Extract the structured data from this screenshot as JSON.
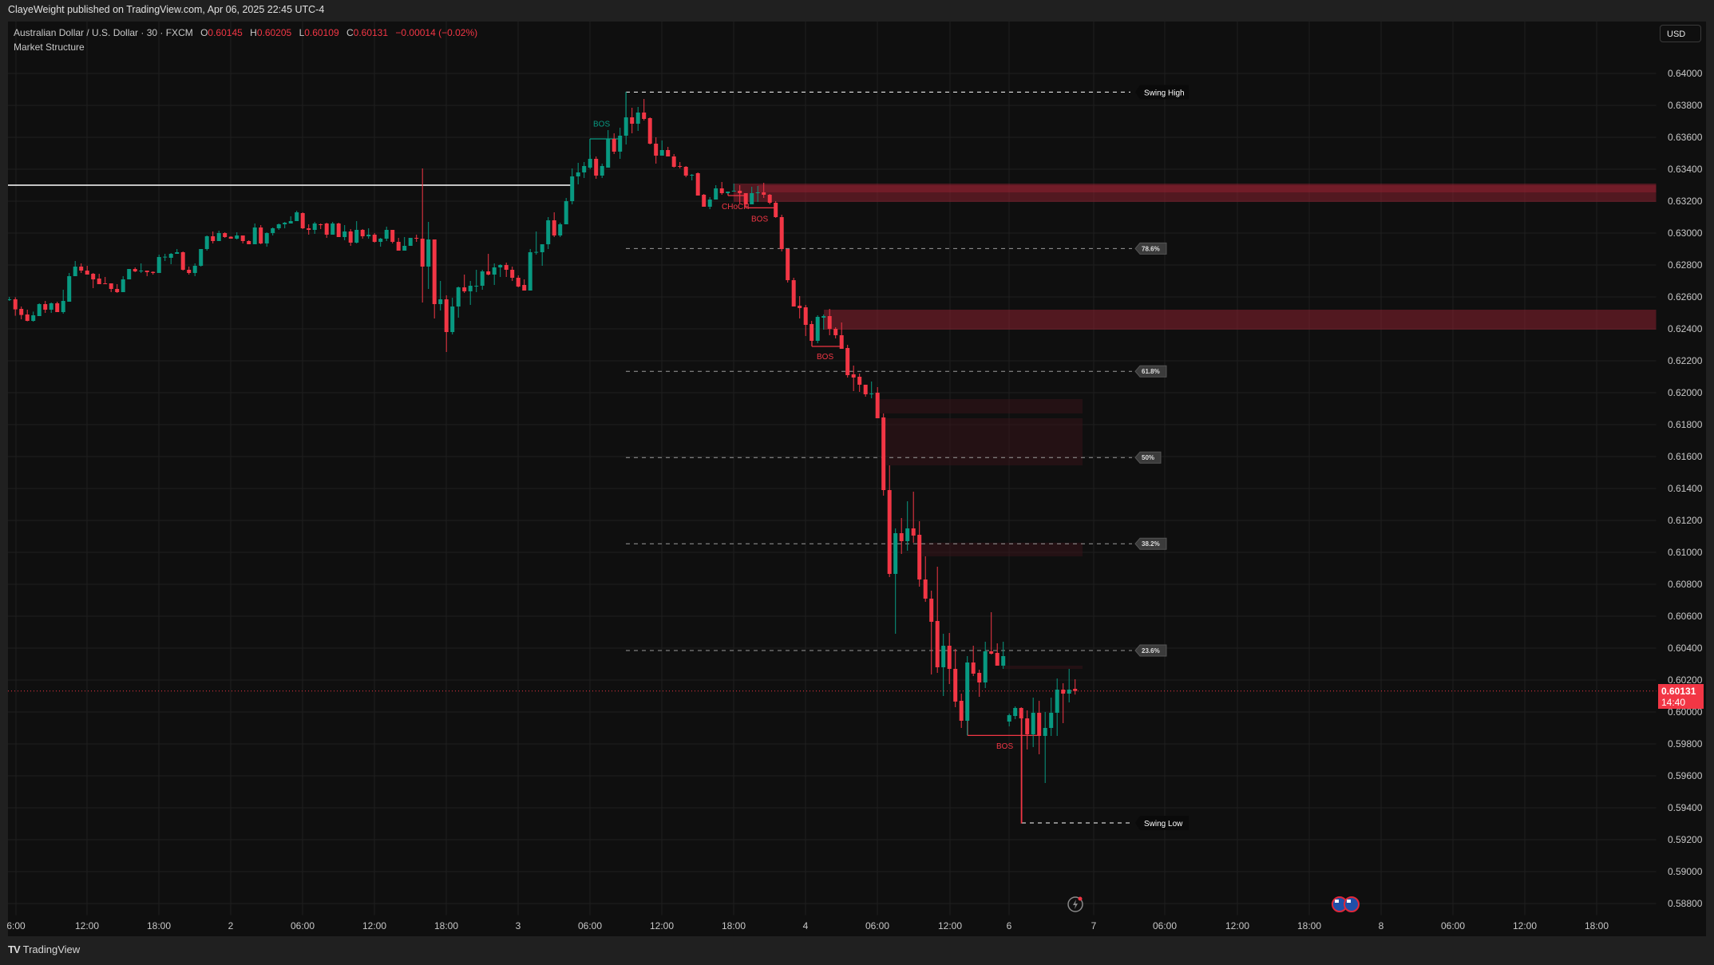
{
  "publish_line": "ClayeWeight published on TradingView.com, Apr 06, 2025 22:45 UTC-4",
  "legend": {
    "symbol": "Australian Dollar / U.S. Dollar · 30 · FXCM",
    "open_label": "O",
    "open": "0.60145",
    "high_label": "H",
    "high": "0.60205",
    "low_label": "L",
    "low": "0.60109",
    "close_label": "C",
    "close": "0.60131",
    "change": "−0.00014 (−0.02%)"
  },
  "study_name": "Market Structure",
  "currency_button": "USD",
  "last_price": {
    "value": "0.60131",
    "countdown": "14:40",
    "price": 0.60131
  },
  "footer_brand": "TradingView",
  "colors": {
    "up": "#089981",
    "down": "#f23645",
    "background": "#0f0f0f",
    "grid": "#1f1f1f",
    "zone": "#8a2130",
    "fib_line": "#9a9a9a"
  },
  "icons": {
    "lightning": "lightning-icon",
    "flags": "australia-flag-icon",
    "logo": "tradingview-logo-icon"
  },
  "chart_data": {
    "type": "candlestick",
    "symbol": "AUDUSD",
    "interval": "30",
    "price_axis": {
      "min": 0.588,
      "max": 0.64,
      "ticks": [
        "0.64000",
        "0.63800",
        "0.63600",
        "0.63400",
        "0.63200",
        "0.63000",
        "0.62800",
        "0.62600",
        "0.62400",
        "0.62200",
        "0.62000",
        "0.61800",
        "0.61600",
        "0.61400",
        "0.61200",
        "0.61000",
        "0.60800",
        "0.60600",
        "0.60400",
        "0.60200",
        "0.60000",
        "0.59800",
        "0.59600",
        "0.59400",
        "0.59200",
        "0.59000",
        "0.58800"
      ]
    },
    "time_axis": {
      "ticks": [
        "6:00",
        "12:00",
        "18:00",
        "2",
        "06:00",
        "12:00",
        "18:00",
        "3",
        "06:00",
        "12:00",
        "18:00",
        "4",
        "06:00",
        "12:00",
        "6",
        "7",
        "06:00",
        "12:00",
        "18:00",
        "8",
        "06:00",
        "12:00",
        "18:00"
      ]
    },
    "grid": true,
    "ohlc": [
      [
        0.62585,
        0.626,
        0.62575,
        0.62585
      ],
      [
        0.62585,
        0.62598,
        0.62482,
        0.62522
      ],
      [
        0.62525,
        0.6254,
        0.6246,
        0.62487
      ],
      [
        0.6249,
        0.6252,
        0.62447,
        0.6245
      ],
      [
        0.6245,
        0.62508,
        0.62445,
        0.62485
      ],
      [
        0.6248,
        0.6256,
        0.6248,
        0.62555
      ],
      [
        0.62555,
        0.62575,
        0.625,
        0.6252
      ],
      [
        0.6252,
        0.62565,
        0.625,
        0.6256
      ],
      [
        0.6256,
        0.6257,
        0.62505,
        0.62505
      ],
      [
        0.62505,
        0.62645,
        0.62495,
        0.62575
      ],
      [
        0.6257,
        0.6275,
        0.6257,
        0.6273
      ],
      [
        0.6273,
        0.62825,
        0.6273,
        0.6279
      ],
      [
        0.6279,
        0.6281,
        0.6275,
        0.62765
      ],
      [
        0.62765,
        0.62795,
        0.6274,
        0.6274
      ],
      [
        0.62745,
        0.6275,
        0.62655,
        0.6271
      ],
      [
        0.62715,
        0.62745,
        0.6268,
        0.6268
      ],
      [
        0.62685,
        0.62725,
        0.6268,
        0.6268
      ],
      [
        0.62685,
        0.62685,
        0.6263,
        0.6265
      ],
      [
        0.6265,
        0.6268,
        0.62625,
        0.6263
      ],
      [
        0.6263,
        0.6273,
        0.6263,
        0.6271
      ],
      [
        0.6271,
        0.62775,
        0.6271,
        0.62775
      ],
      [
        0.62775,
        0.62785,
        0.62755,
        0.6276
      ],
      [
        0.6276,
        0.6281,
        0.6275,
        0.62765
      ],
      [
        0.62765,
        0.62765,
        0.6273,
        0.62755
      ],
      [
        0.62757,
        0.6276,
        0.6274,
        0.6275
      ],
      [
        0.6275,
        0.62865,
        0.6275,
        0.6285
      ],
      [
        0.6285,
        0.6287,
        0.62825,
        0.62852
      ],
      [
        0.62845,
        0.62875,
        0.62805,
        0.6287
      ],
      [
        0.6287,
        0.629,
        0.6287,
        0.6288
      ],
      [
        0.6288,
        0.62885,
        0.62765,
        0.6277
      ],
      [
        0.6277,
        0.6279,
        0.6274,
        0.6275
      ],
      [
        0.6275,
        0.6281,
        0.6273,
        0.62795
      ],
      [
        0.62795,
        0.629,
        0.6279,
        0.629
      ],
      [
        0.629,
        0.62985,
        0.6289,
        0.6298
      ],
      [
        0.6298,
        0.6301,
        0.62935,
        0.6295
      ],
      [
        0.6295,
        0.63015,
        0.6295,
        0.63
      ],
      [
        0.63,
        0.63005,
        0.6297,
        0.62975
      ],
      [
        0.62977,
        0.6298,
        0.62965,
        0.62965
      ],
      [
        0.62965,
        0.63005,
        0.6296,
        0.62985
      ],
      [
        0.62985,
        0.62985,
        0.62935,
        0.6295
      ],
      [
        0.6295,
        0.62955,
        0.6293,
        0.6293
      ],
      [
        0.6293,
        0.6306,
        0.6293,
        0.63035
      ],
      [
        0.63035,
        0.6305,
        0.6293,
        0.62935
      ],
      [
        0.62935,
        0.63005,
        0.62915,
        0.63
      ],
      [
        0.63,
        0.63035,
        0.62985,
        0.6303
      ],
      [
        0.6303,
        0.6306,
        0.6302,
        0.63055
      ],
      [
        0.63055,
        0.6307,
        0.6303,
        0.63065
      ],
      [
        0.6306,
        0.63105,
        0.6306,
        0.63075
      ],
      [
        0.63075,
        0.6314,
        0.63075,
        0.6313
      ],
      [
        0.63125,
        0.6313,
        0.63025,
        0.6303
      ],
      [
        0.6303,
        0.63055,
        0.6299,
        0.6302
      ],
      [
        0.6302,
        0.6307,
        0.62995,
        0.6306
      ],
      [
        0.63055,
        0.6306,
        0.63025,
        0.6305
      ],
      [
        0.6306,
        0.63065,
        0.6297,
        0.6299
      ],
      [
        0.6299,
        0.6307,
        0.6299,
        0.6306
      ],
      [
        0.6306,
        0.63065,
        0.62975,
        0.62975
      ],
      [
        0.62975,
        0.6305,
        0.62955,
        0.6301
      ],
      [
        0.6301,
        0.63025,
        0.6292,
        0.6294
      ],
      [
        0.6294,
        0.63075,
        0.62935,
        0.6302
      ],
      [
        0.6302,
        0.63025,
        0.62965,
        0.6298
      ],
      [
        0.6298,
        0.6303,
        0.62965,
        0.6299
      ],
      [
        0.6299,
        0.63,
        0.6294,
        0.62945
      ],
      [
        0.62945,
        0.6297,
        0.62915,
        0.62965
      ],
      [
        0.62965,
        0.6304,
        0.6295,
        0.6302
      ],
      [
        0.6302,
        0.6302,
        0.62935,
        0.62945
      ],
      [
        0.62945,
        0.6297,
        0.6289,
        0.6289
      ],
      [
        0.6289,
        0.62975,
        0.6289,
        0.6292
      ],
      [
        0.6292,
        0.6297,
        0.6292,
        0.6297
      ],
      [
        0.6297,
        0.6299,
        0.62945,
        0.62968
      ],
      [
        0.62965,
        0.63405,
        0.62565,
        0.6279
      ],
      [
        0.6279,
        0.6307,
        0.6265,
        0.6296
      ],
      [
        0.6296,
        0.6296,
        0.62465,
        0.62555
      ],
      [
        0.62555,
        0.627,
        0.62515,
        0.62585
      ],
      [
        0.62585,
        0.6261,
        0.62255,
        0.6238
      ],
      [
        0.6238,
        0.62595,
        0.62365,
        0.6254
      ],
      [
        0.6254,
        0.62665,
        0.6247,
        0.6266
      ],
      [
        0.6266,
        0.6274,
        0.62625,
        0.62635
      ],
      [
        0.62635,
        0.627,
        0.6255,
        0.6267
      ],
      [
        0.62665,
        0.6277,
        0.6263,
        0.6267
      ],
      [
        0.6267,
        0.6277,
        0.62645,
        0.6276
      ],
      [
        0.6276,
        0.6287,
        0.62735,
        0.6274
      ],
      [
        0.6274,
        0.6281,
        0.62675,
        0.62785
      ],
      [
        0.62785,
        0.62805,
        0.62725,
        0.628
      ],
      [
        0.628,
        0.62815,
        0.62725,
        0.6277
      ],
      [
        0.6277,
        0.6279,
        0.627,
        0.6272
      ],
      [
        0.6272,
        0.62735,
        0.6266,
        0.62665
      ],
      [
        0.62675,
        0.6271,
        0.6264,
        0.6264
      ],
      [
        0.6264,
        0.629,
        0.6264,
        0.6288
      ],
      [
        0.6288,
        0.6301,
        0.62865,
        0.62882
      ],
      [
        0.6288,
        0.6293,
        0.62795,
        0.6293
      ],
      [
        0.6293,
        0.631,
        0.629,
        0.6308
      ],
      [
        0.6308,
        0.6313,
        0.62975,
        0.62985
      ],
      [
        0.62985,
        0.63065,
        0.62975,
        0.63055
      ],
      [
        0.63055,
        0.6322,
        0.63055,
        0.632
      ],
      [
        0.632,
        0.63405,
        0.6318,
        0.63355
      ],
      [
        0.63355,
        0.6344,
        0.63305,
        0.6338
      ],
      [
        0.6338,
        0.63445,
        0.63345,
        0.6342
      ],
      [
        0.6341,
        0.6349,
        0.634,
        0.63465
      ],
      [
        0.63465,
        0.6348,
        0.6334,
        0.6336
      ],
      [
        0.6336,
        0.63435,
        0.63345,
        0.6342
      ],
      [
        0.6341,
        0.63645,
        0.6341,
        0.6359
      ],
      [
        0.6359,
        0.63625,
        0.63495,
        0.6351
      ],
      [
        0.6351,
        0.6366,
        0.63465,
        0.6361
      ],
      [
        0.6361,
        0.63885,
        0.63555,
        0.63725
      ],
      [
        0.63725,
        0.63785,
        0.63625,
        0.63685
      ],
      [
        0.63685,
        0.6379,
        0.6364,
        0.63755
      ],
      [
        0.63755,
        0.6384,
        0.63705,
        0.63715
      ],
      [
        0.6372,
        0.63725,
        0.63555,
        0.6356
      ],
      [
        0.6356,
        0.636,
        0.63435,
        0.63485
      ],
      [
        0.63485,
        0.6358,
        0.63485,
        0.6352
      ],
      [
        0.6352,
        0.6354,
        0.6348,
        0.6348
      ],
      [
        0.6348,
        0.63495,
        0.6341,
        0.63415
      ],
      [
        0.6342,
        0.63445,
        0.63405,
        0.63418
      ],
      [
        0.63415,
        0.6342,
        0.6335,
        0.6336
      ],
      [
        0.6336,
        0.6337,
        0.6333,
        0.63365
      ],
      [
        0.63375,
        0.6338,
        0.63235,
        0.63235
      ],
      [
        0.6324,
        0.63245,
        0.63165,
        0.63165
      ],
      [
        0.63165,
        0.63225,
        0.6315,
        0.6321
      ],
      [
        0.6321,
        0.633,
        0.6321,
        0.6328
      ],
      [
        0.6328,
        0.6332,
        0.6324,
        0.6325
      ],
      [
        0.6325,
        0.6326,
        0.63245,
        0.6326
      ],
      [
        0.6326,
        0.6331,
        0.6326,
        0.63265
      ],
      [
        0.63265,
        0.633,
        0.63185,
        0.6325
      ],
      [
        0.6325,
        0.6325,
        0.6318,
        0.6318
      ],
      [
        0.6318,
        0.6329,
        0.6318,
        0.6325
      ],
      [
        0.6325,
        0.63295,
        0.63195,
        0.63255
      ],
      [
        0.63255,
        0.63315,
        0.6322,
        0.6324
      ],
      [
        0.6324,
        0.63245,
        0.6318,
        0.6319
      ],
      [
        0.6319,
        0.632,
        0.63095,
        0.631
      ],
      [
        0.631,
        0.63115,
        0.62885,
        0.629
      ],
      [
        0.629,
        0.629,
        0.6269,
        0.62705
      ],
      [
        0.62705,
        0.6272,
        0.6254,
        0.6254
      ],
      [
        0.62545,
        0.62605,
        0.62465,
        0.6253
      ],
      [
        0.62535,
        0.6255,
        0.62355,
        0.62425
      ],
      [
        0.6243,
        0.6245,
        0.62325,
        0.62325
      ],
      [
        0.62325,
        0.62485,
        0.6231,
        0.62475
      ],
      [
        0.6247,
        0.6249,
        0.62395,
        0.6248
      ],
      [
        0.6248,
        0.62525,
        0.6236,
        0.624
      ],
      [
        0.624,
        0.6241,
        0.6234,
        0.6236
      ],
      [
        0.6236,
        0.6244,
        0.62275,
        0.62275
      ],
      [
        0.6228,
        0.623,
        0.62095,
        0.6211
      ],
      [
        0.62115,
        0.6217,
        0.6201,
        0.62095
      ],
      [
        0.621,
        0.6212,
        0.62005,
        0.6205
      ],
      [
        0.6205,
        0.6205,
        0.61975,
        0.6199
      ],
      [
        0.6199,
        0.6207,
        0.61965,
        0.61995
      ],
      [
        0.62,
        0.62035,
        0.6184,
        0.6184
      ],
      [
        0.61845,
        0.6187,
        0.61355,
        0.6139
      ],
      [
        0.6139,
        0.61545,
        0.60845,
        0.60865
      ],
      [
        0.60865,
        0.6115,
        0.6049,
        0.6112
      ],
      [
        0.6112,
        0.61215,
        0.6099,
        0.6107
      ],
      [
        0.6107,
        0.6132,
        0.6101,
        0.6115
      ],
      [
        0.6115,
        0.6138,
        0.6106,
        0.61105
      ],
      [
        0.6111,
        0.61195,
        0.60785,
        0.6083
      ],
      [
        0.6083,
        0.60975,
        0.6069,
        0.6071
      ],
      [
        0.6071,
        0.6076,
        0.60235,
        0.60565
      ],
      [
        0.6057,
        0.6091,
        0.60245,
        0.6028
      ],
      [
        0.6028,
        0.6049,
        0.601,
        0.60415
      ],
      [
        0.60415,
        0.60495,
        0.60175,
        0.6027
      ],
      [
        0.6027,
        0.60395,
        0.6003,
        0.60065
      ],
      [
        0.6007,
        0.60115,
        0.599,
        0.59945
      ],
      [
        0.59945,
        0.6035,
        0.59853,
        0.6031
      ],
      [
        0.6031,
        0.60415,
        0.60225,
        0.6024
      ],
      [
        0.60245,
        0.60265,
        0.60095,
        0.60185
      ],
      [
        0.60185,
        0.6044,
        0.6015,
        0.6038
      ],
      [
        0.6038,
        0.60625,
        0.6036,
        0.60365
      ],
      [
        0.6037,
        0.6043,
        0.6029,
        0.6029
      ],
      [
        0.6029,
        0.6044,
        0.6027,
        0.6035
      ],
      [
        0.5994,
        0.5999,
        0.5991,
        0.5998
      ],
      [
        0.59975,
        0.60035,
        0.59955,
        0.60025
      ],
      [
        0.60025,
        0.6003,
        0.593,
        0.5996
      ],
      [
        0.5996,
        0.6001,
        0.59765,
        0.5986
      ],
      [
        0.5986,
        0.6009,
        0.5978,
        0.59995
      ],
      [
        0.59995,
        0.6007,
        0.59735,
        0.5985
      ],
      [
        0.5985,
        0.6,
        0.59555,
        0.599
      ],
      [
        0.599,
        0.6009,
        0.5985,
        0.59995
      ],
      [
        0.59995,
        0.6021,
        0.5985,
        0.6014
      ],
      [
        0.6014,
        0.6018,
        0.5993,
        0.60115
      ],
      [
        0.60115,
        0.6027,
        0.6006,
        0.6014
      ],
      [
        0.60145,
        0.60205,
        0.60109,
        0.60131
      ]
    ],
    "reference_line": 0.633,
    "swing_high": {
      "label": "Swing High",
      "price": 0.63883
    },
    "swing_low": {
      "label": "Swing Low",
      "price": 0.59305
    },
    "fib_levels": [
      {
        "label": "78.6%",
        "price": 0.62903
      },
      {
        "label": "61.8%",
        "price": 0.62134
      },
      {
        "label": "50%",
        "price": 0.61594
      },
      {
        "label": "38.2%",
        "price": 0.61054
      },
      {
        "label": "23.6%",
        "price": 0.60385
      }
    ],
    "order_blocks": [
      {
        "top": 0.6331,
        "bottom": 0.63195,
        "strength": "strong"
      },
      {
        "top": 0.633,
        "bottom": 0.63255,
        "strength": "strong"
      },
      {
        "top": 0.6252,
        "bottom": 0.62395,
        "strength": "strong"
      },
      {
        "top": 0.6196,
        "bottom": 0.6187,
        "strength": "faint"
      },
      {
        "top": 0.6184,
        "bottom": 0.61545,
        "strength": "faint"
      },
      {
        "top": 0.6106,
        "bottom": 0.60975,
        "strength": "faint"
      },
      {
        "top": 0.6029,
        "bottom": 0.6027,
        "strength": "faint"
      }
    ],
    "structure_breaks": [
      {
        "label": "BOS",
        "direction": "bullish",
        "price": 0.6359
      },
      {
        "label": "CHoCH",
        "direction": "bearish",
        "price": 0.63235
      },
      {
        "label": "BOS",
        "direction": "bearish",
        "price": 0.63158
      },
      {
        "label": "BOS",
        "direction": "bearish",
        "price": 0.6229
      },
      {
        "label": "BOS",
        "direction": "bearish",
        "price": 0.59853
      }
    ]
  }
}
